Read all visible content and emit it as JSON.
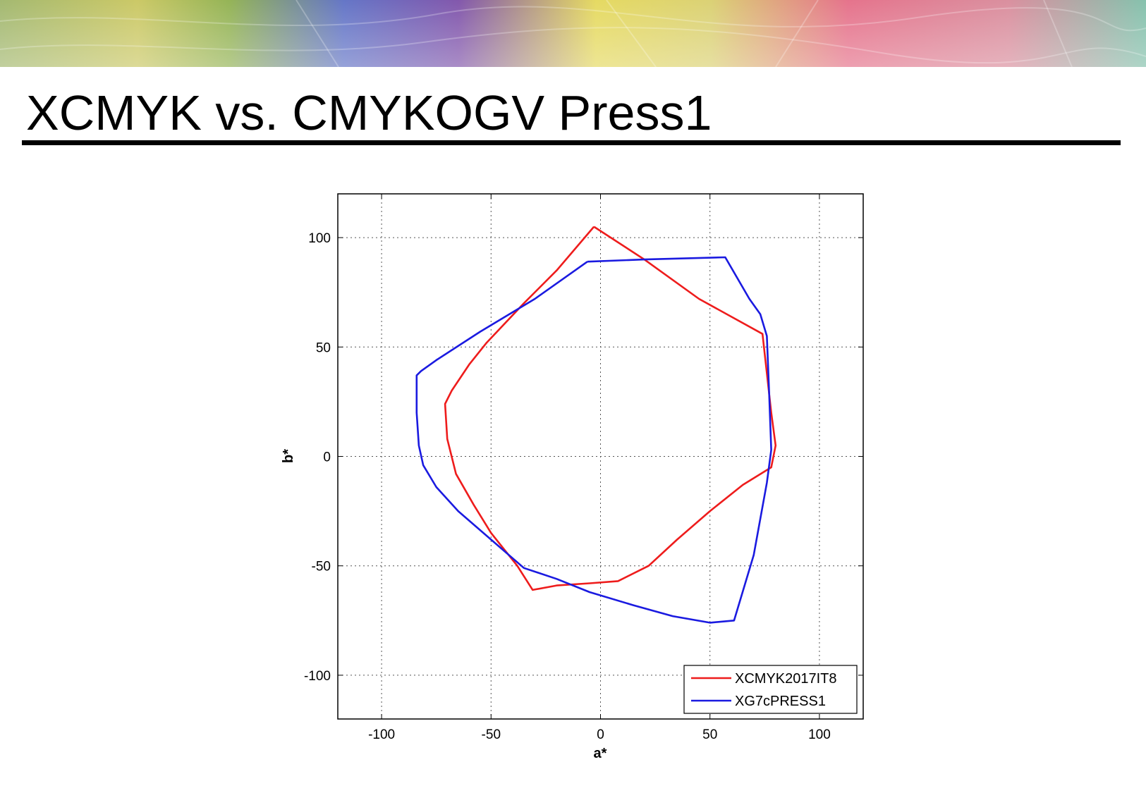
{
  "slide": {
    "title": "XCMYK vs. CMYKOGV Press1"
  },
  "colors": {
    "banner_stops": [
      "#9fb56a",
      "#c9c65f",
      "#8fb04e",
      "#5d6fc4",
      "#7c4fa8",
      "#e4d85a",
      "#d9cf6e",
      "#e46c86",
      "#d88a9a",
      "#7fbfa9"
    ],
    "series_red": "#ee1c1c",
    "series_blue": "#1a1ae0"
  },
  "chart_data": {
    "type": "line",
    "title": "",
    "xlabel": "a*",
    "ylabel": "b*",
    "xlim": [
      -120,
      120
    ],
    "ylim": [
      -120,
      120
    ],
    "xticks": [
      -100,
      -50,
      0,
      50,
      100
    ],
    "yticks": [
      -100,
      -50,
      0,
      50,
      100
    ],
    "tick_labels_x": [
      "-100",
      "-50",
      "0",
      "50",
      "100"
    ],
    "tick_labels_y": [
      "-100",
      "-50",
      "0",
      "50",
      "100"
    ],
    "grid": true,
    "grid_style": "dotted",
    "legend_position": "bottom-right",
    "series": [
      {
        "name": "XCMYK2017IT8",
        "color": "#ee1c1c",
        "points": [
          [
            -3,
            105
          ],
          [
            20,
            90
          ],
          [
            45,
            72
          ],
          [
            74,
            56
          ],
          [
            78,
            20
          ],
          [
            80,
            5
          ],
          [
            78,
            -5
          ],
          [
            65,
            -13
          ],
          [
            50,
            -25
          ],
          [
            35,
            -38
          ],
          [
            22,
            -50
          ],
          [
            8,
            -57
          ],
          [
            -5,
            -58
          ],
          [
            -20,
            -59
          ],
          [
            -31,
            -61
          ],
          [
            -38,
            -50
          ],
          [
            -50,
            -35
          ],
          [
            -58,
            -22
          ],
          [
            -66,
            -8
          ],
          [
            -70,
            8
          ],
          [
            -71,
            24
          ],
          [
            -68,
            30
          ],
          [
            -60,
            42
          ],
          [
            -52,
            52
          ],
          [
            -35,
            70
          ],
          [
            -20,
            85
          ],
          [
            -3,
            105
          ]
        ]
      },
      {
        "name": "XG7cPRESS1",
        "color": "#1a1ae0",
        "points": [
          [
            -6,
            89
          ],
          [
            20,
            90
          ],
          [
            57,
            91
          ],
          [
            68,
            72
          ],
          [
            73,
            65
          ],
          [
            76,
            55
          ],
          [
            77,
            30
          ],
          [
            78,
            3
          ],
          [
            76,
            -12
          ],
          [
            70,
            -45
          ],
          [
            61,
            -75
          ],
          [
            50,
            -76
          ],
          [
            33,
            -73
          ],
          [
            15,
            -68
          ],
          [
            -5,
            -62
          ],
          [
            -20,
            -56
          ],
          [
            -35,
            -51
          ],
          [
            -50,
            -38
          ],
          [
            -65,
            -25
          ],
          [
            -75,
            -14
          ],
          [
            -81,
            -4
          ],
          [
            -83,
            5
          ],
          [
            -84,
            20
          ],
          [
            -84,
            37
          ],
          [
            -82,
            39
          ],
          [
            -75,
            44
          ],
          [
            -55,
            57
          ],
          [
            -30,
            72
          ],
          [
            -6,
            89
          ]
        ]
      }
    ]
  }
}
